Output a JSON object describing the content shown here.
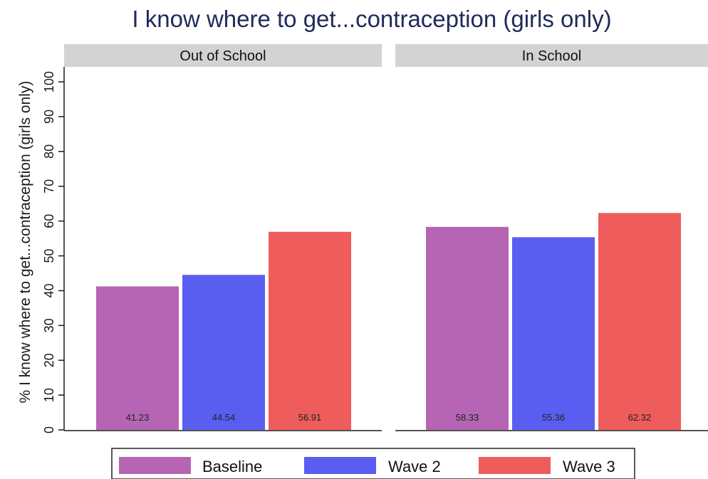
{
  "chart_data": {
    "type": "bar",
    "title": "I know where to get...contraception (girls only)",
    "ylabel": "% I know where to get...contraception (girls only)",
    "xlabel": "",
    "ylim": [
      0,
      100
    ],
    "yticks": [
      0,
      10,
      20,
      30,
      40,
      50,
      60,
      70,
      80,
      90,
      100
    ],
    "grid": false,
    "legend_position": "bottom",
    "panels": [
      {
        "label": "Out of School",
        "series": [
          {
            "name": "Baseline",
            "value": 41.23,
            "label": "41.23"
          },
          {
            "name": "Wave 2",
            "value": 44.54,
            "label": "44.54"
          },
          {
            "name": "Wave 3",
            "value": 56.91,
            "label": "56.91"
          }
        ]
      },
      {
        "label": "In School",
        "series": [
          {
            "name": "Baseline",
            "value": 58.33,
            "label": "58.33"
          },
          {
            "name": "Wave 2",
            "value": 55.36,
            "label": "55.36"
          },
          {
            "name": "Wave 3",
            "value": 62.32,
            "label": "62.32"
          }
        ]
      }
    ],
    "legend": [
      {
        "name": "Baseline",
        "color": "#b565b3"
      },
      {
        "name": "Wave 2",
        "color": "#5a5ef0"
      },
      {
        "name": "Wave 3",
        "color": "#ee5c5c"
      }
    ],
    "colors": {
      "strip_bg": "#d3d3d3",
      "title": "#1f2a5a",
      "axis": "#1a1a1a"
    }
  }
}
